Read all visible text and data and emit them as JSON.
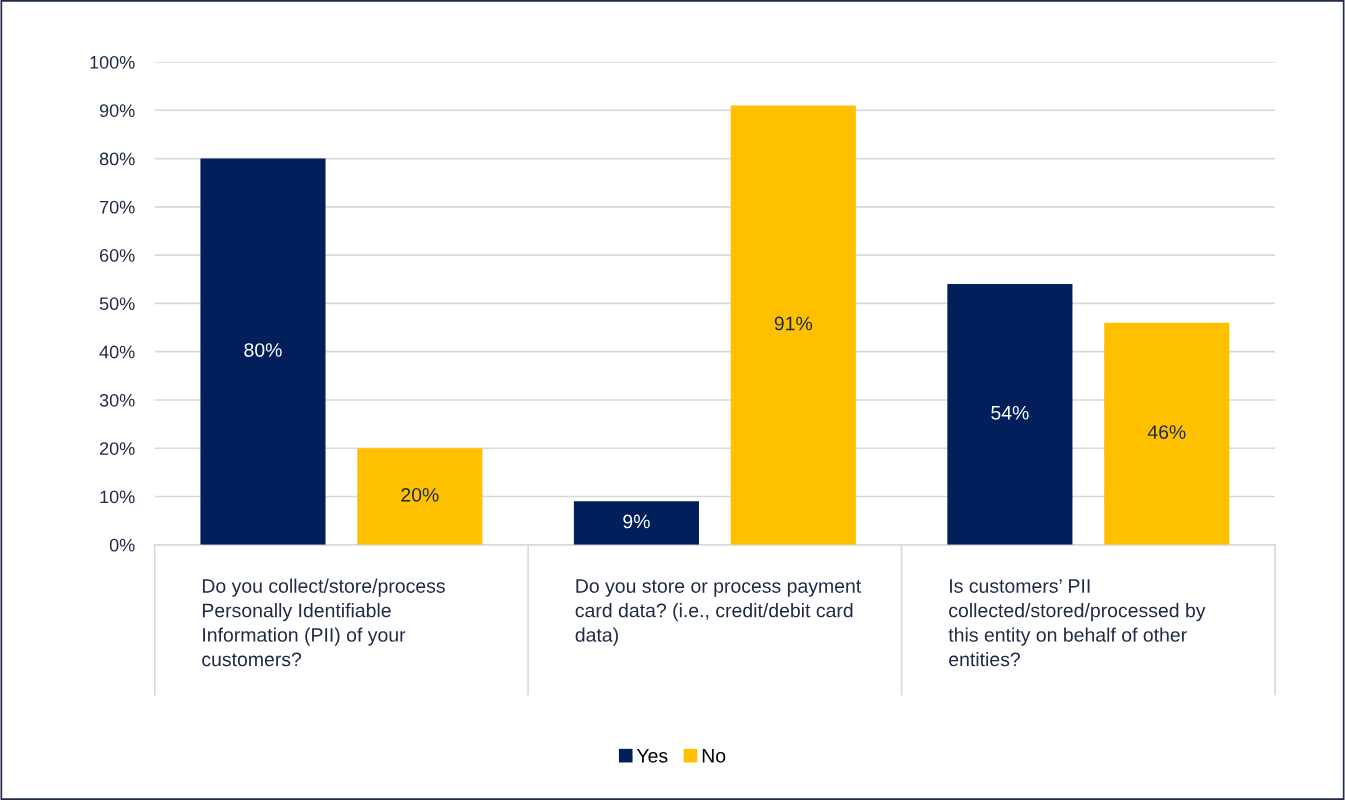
{
  "chart_data": {
    "type": "bar",
    "categories": [
      "Do you collect/store/process\nPersonally Identifiable\nInformation (PII) of your\ncustomers?",
      "Do you store or process payment\ncard data? (i.e., credit/debit card\ndata)",
      "Is customers’ PII\ncollected/stored/processed by\nthis entity on behalf of other\nentities?"
    ],
    "series": [
      {
        "name": "Yes",
        "color": "#001f5b",
        "values": [
          80,
          9,
          54
        ],
        "value_labels": [
          "80%",
          "9%",
          "54%"
        ]
      },
      {
        "name": "No",
        "color": "#ffc000",
        "values": [
          20,
          91,
          46
        ],
        "value_labels": [
          "20%",
          "91%",
          "46%"
        ]
      }
    ],
    "ylim": [
      0,
      100
    ],
    "yticks": [
      {
        "value": 0,
        "label": "0%"
      },
      {
        "value": 10,
        "label": "10%"
      },
      {
        "value": 20,
        "label": "20%"
      },
      {
        "value": 30,
        "label": "30%"
      },
      {
        "value": 40,
        "label": "40%"
      },
      {
        "value": 50,
        "label": "50%"
      },
      {
        "value": 60,
        "label": "60%"
      },
      {
        "value": 70,
        "label": "70%"
      },
      {
        "value": 80,
        "label": "80%"
      },
      {
        "value": 90,
        "label": "90%"
      },
      {
        "value": 100,
        "label": "100%"
      }
    ],
    "grid": "y",
    "legend": "bottom"
  }
}
